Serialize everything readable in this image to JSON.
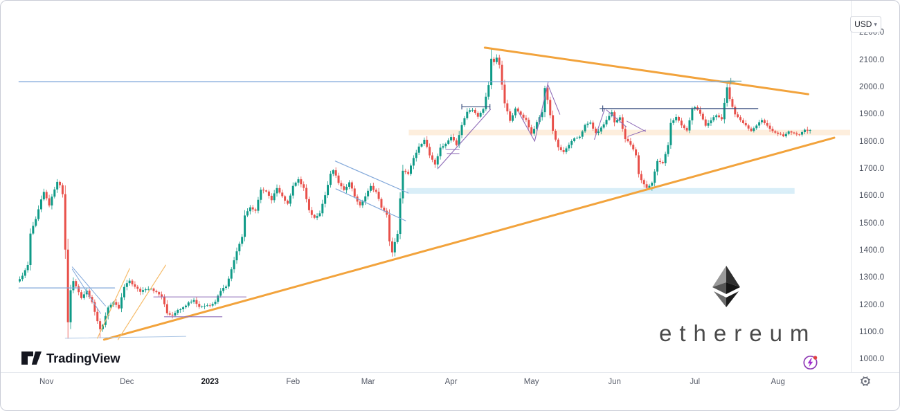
{
  "header": {
    "currency_label": "USD",
    "chevron_down": "▾"
  },
  "branding": {
    "tradingview": "TradingView",
    "watermark_text": "ethereum"
  },
  "axes": {
    "price_ticks": [
      {
        "p": 2200,
        "label": "2200.0"
      },
      {
        "p": 2100,
        "label": "2100.0"
      },
      {
        "p": 2000,
        "label": "2000.0"
      },
      {
        "p": 1900,
        "label": "1900.0"
      },
      {
        "p": 1800,
        "label": "1800.0"
      },
      {
        "p": 1700,
        "label": "1700.0"
      },
      {
        "p": 1600,
        "label": "1600.0"
      },
      {
        "p": 1500,
        "label": "1500.0"
      },
      {
        "p": 1400,
        "label": "1400.0"
      },
      {
        "p": 1300,
        "label": "1300.0"
      },
      {
        "p": 1200,
        "label": "1200.0"
      },
      {
        "p": 1100,
        "label": "1100.0"
      },
      {
        "p": 1000,
        "label": "1000.0"
      }
    ],
    "time_ticks": [
      {
        "d": 10,
        "label": "Nov",
        "bold": false
      },
      {
        "d": 40,
        "label": "Dec",
        "bold": false
      },
      {
        "d": 71,
        "label": "2023",
        "bold": true
      },
      {
        "d": 102,
        "label": "Feb",
        "bold": false
      },
      {
        "d": 130,
        "label": "Mar",
        "bold": false
      },
      {
        "d": 161,
        "label": "Apr",
        "bold": false
      },
      {
        "d": 191,
        "label": "May",
        "bold": false
      },
      {
        "d": 222,
        "label": "Jun",
        "bold": false
      },
      {
        "d": 252,
        "label": "Jul",
        "bold": false
      },
      {
        "d": 283,
        "label": "Aug",
        "bold": false
      }
    ]
  },
  "chart_data": {
    "type": "candlestick",
    "currency": "USD",
    "watermark": "ethereum",
    "x_range_days": 296,
    "ylim": [
      955,
      2295
    ],
    "price_anchors": [
      [
        0,
        1295
      ],
      [
        2,
        1330
      ],
      [
        3,
        1350
      ],
      [
        4,
        1465
      ],
      [
        6,
        1520
      ],
      [
        8,
        1590
      ],
      [
        9,
        1615
      ],
      [
        11,
        1570
      ],
      [
        13,
        1625
      ],
      [
        14,
        1655
      ],
      [
        15,
        1640
      ],
      [
        16,
        1610
      ],
      [
        17,
        1405
      ],
      [
        18,
        1140
      ],
      [
        19,
        1255
      ],
      [
        20,
        1290
      ],
      [
        21,
        1270
      ],
      [
        23,
        1230
      ],
      [
        25,
        1255
      ],
      [
        27,
        1215
      ],
      [
        29,
        1140
      ],
      [
        30,
        1112
      ],
      [
        31,
        1130
      ],
      [
        33,
        1195
      ],
      [
        35,
        1210
      ],
      [
        37,
        1190
      ],
      [
        39,
        1268
      ],
      [
        41,
        1292
      ],
      [
        43,
        1268
      ],
      [
        45,
        1252
      ],
      [
        47,
        1262
      ],
      [
        49,
        1264
      ],
      [
        51,
        1248
      ],
      [
        53,
        1234
      ],
      [
        55,
        1172
      ],
      [
        57,
        1165
      ],
      [
        59,
        1186
      ],
      [
        61,
        1192
      ],
      [
        63,
        1214
      ],
      [
        65,
        1220
      ],
      [
        67,
        1196
      ],
      [
        69,
        1200
      ],
      [
        71,
        1202
      ],
      [
        73,
        1216
      ],
      [
        75,
        1256
      ],
      [
        77,
        1272
      ],
      [
        79,
        1332
      ],
      [
        81,
        1402
      ],
      [
        83,
        1455
      ],
      [
        84,
        1532
      ],
      [
        86,
        1562
      ],
      [
        88,
        1546
      ],
      [
        90,
        1628
      ],
      [
        92,
        1618
      ],
      [
        94,
        1586
      ],
      [
        96,
        1634
      ],
      [
        98,
        1602
      ],
      [
        100,
        1572
      ],
      [
        102,
        1642
      ],
      [
        104,
        1662
      ],
      [
        106,
        1632
      ],
      [
        108,
        1548
      ],
      [
        110,
        1522
      ],
      [
        112,
        1542
      ],
      [
        114,
        1606
      ],
      [
        116,
        1682
      ],
      [
        117,
        1698
      ],
      [
        119,
        1652
      ],
      [
        121,
        1622
      ],
      [
        123,
        1656
      ],
      [
        125,
        1602
      ],
      [
        127,
        1566
      ],
      [
        129,
        1602
      ],
      [
        131,
        1638
      ],
      [
        133,
        1618
      ],
      [
        135,
        1562
      ],
      [
        137,
        1532
      ],
      [
        138,
        1438
      ],
      [
        139,
        1396
      ],
      [
        140,
        1432
      ],
      [
        141,
        1462
      ],
      [
        142,
        1592
      ],
      [
        143,
        1698
      ],
      [
        145,
        1682
      ],
      [
        147,
        1742
      ],
      [
        149,
        1782
      ],
      [
        151,
        1812
      ],
      [
        153,
        1752
      ],
      [
        155,
        1716
      ],
      [
        157,
        1782
      ],
      [
        159,
        1792
      ],
      [
        161,
        1822
      ],
      [
        163,
        1792
      ],
      [
        165,
        1862
      ],
      [
        167,
        1912
      ],
      [
        169,
        1922
      ],
      [
        171,
        1892
      ],
      [
        173,
        1922
      ],
      [
        175,
        2012
      ],
      [
        176,
        2108
      ],
      [
        177,
        2092
      ],
      [
        178,
        2112
      ],
      [
        179,
        2082
      ],
      [
        181,
        1942
      ],
      [
        183,
        1882
      ],
      [
        185,
        1922
      ],
      [
        187,
        1902
      ],
      [
        189,
        1882
      ],
      [
        191,
        1832
      ],
      [
        193,
        1872
      ],
      [
        195,
        1912
      ],
      [
        196,
        1998
      ],
      [
        197,
        1958
      ],
      [
        199,
        1842
      ],
      [
        201,
        1782
      ],
      [
        203,
        1762
      ],
      [
        205,
        1792
      ],
      [
        207,
        1812
      ],
      [
        209,
        1822
      ],
      [
        211,
        1862
      ],
      [
        213,
        1872
      ],
      [
        215,
        1832
      ],
      [
        217,
        1852
      ],
      [
        219,
        1882
      ],
      [
        221,
        1912
      ],
      [
        222,
        1872
      ],
      [
        224,
        1892
      ],
      [
        226,
        1812
      ],
      [
        228,
        1792
      ],
      [
        230,
        1752
      ],
      [
        231,
        1682
      ],
      [
        232,
        1662
      ],
      [
        234,
        1632
      ],
      [
        236,
        1652
      ],
      [
        238,
        1732
      ],
      [
        240,
        1722
      ],
      [
        242,
        1792
      ],
      [
        243,
        1872
      ],
      [
        245,
        1892
      ],
      [
        247,
        1862
      ],
      [
        249,
        1842
      ],
      [
        251,
        1922
      ],
      [
        252,
        1932
      ],
      [
        254,
        1902
      ],
      [
        256,
        1862
      ],
      [
        258,
        1882
      ],
      [
        260,
        1902
      ],
      [
        262,
        1882
      ],
      [
        264,
        2002
      ],
      [
        265,
        1962
      ],
      [
        267,
        1902
      ],
      [
        269,
        1882
      ],
      [
        271,
        1862
      ],
      [
        273,
        1842
      ],
      [
        275,
        1862
      ],
      [
        277,
        1882
      ],
      [
        279,
        1862
      ],
      [
        281,
        1842
      ],
      [
        283,
        1832
      ],
      [
        285,
        1822
      ],
      [
        287,
        1842
      ],
      [
        289,
        1832
      ],
      [
        291,
        1826
      ],
      [
        293,
        1846
      ],
      [
        295,
        1842
      ]
    ],
    "wick_overrides": [
      {
        "d": 18,
        "low": 1078
      },
      {
        "d": 30,
        "low": 1080
      },
      {
        "d": 139,
        "low": 1380
      },
      {
        "d": 176,
        "high": 2142
      },
      {
        "d": 196,
        "high": 2008
      },
      {
        "d": 236,
        "low": 1622
      },
      {
        "d": 264,
        "high": 2026
      }
    ],
    "colors": {
      "up": "#0e9a87",
      "down": "#e8504a",
      "orange_main": "#f2a33c",
      "orange_thin": "#f6bb68",
      "blue_line": "#7fa6d9",
      "blue_faint": "#a9c4e4",
      "navy": "#3c5180",
      "purple": "#8f6db8",
      "teal": "#6aa4a0",
      "band_blue": "#d9eef8",
      "band_peach": "#fdeedd"
    },
    "overlays": {
      "bands": [
        {
          "name": "support-zone-1620",
          "d1": 144.4,
          "d2": 289.2,
          "p1": 1611,
          "p2": 1632,
          "color": "band_blue"
        },
        {
          "name": "pivot-zone-1836",
          "d1": 145.2,
          "d2": 312,
          "p1": 1826,
          "p2": 1846,
          "color": "band_peach"
        }
      ],
      "lines": [
        {
          "name": "ascending-trendline-main",
          "d1": 31.5,
          "p1": 1075,
          "d2": 304,
          "p2": 1817,
          "color": "orange_main",
          "w": 3
        },
        {
          "name": "descending-trendline-main",
          "d1": 173.6,
          "p1": 2148,
          "d2": 294.3,
          "p2": 1977,
          "color": "orange_main",
          "w": 3
        },
        {
          "name": "resistance-2020",
          "d1": -0.3,
          "p1": 2023,
          "d2": 267,
          "p2": 2023,
          "color": "blue_line",
          "w": 1.2
        },
        {
          "name": "support-1265",
          "d1": -0.3,
          "p1": 1265,
          "d2": 35.4,
          "p2": 1265,
          "color": "blue_line",
          "w": 1.3
        },
        {
          "name": "low-baseline",
          "d1": 17,
          "p1": 1080,
          "d2": 62,
          "p2": 1087,
          "color": "blue_faint",
          "w": 1
        },
        {
          "name": "orange-channel-1",
          "d1": 29,
          "p1": 1080,
          "d2": 41,
          "p2": 1336,
          "color": "orange_thin",
          "w": 1.2
        },
        {
          "name": "orange-channel-2",
          "d1": 36.7,
          "p1": 1075,
          "d2": 54.5,
          "p2": 1349,
          "color": "orange_thin",
          "w": 1.2
        },
        {
          "name": "nov-wedge-upper",
          "d1": 19.6,
          "p1": 1342,
          "d2": 32,
          "p2": 1199,
          "color": "blue_line",
          "w": 1
        },
        {
          "name": "nov-wedge-lower",
          "d1": 19.6,
          "p1": 1334,
          "d2": 30.2,
          "p2": 1171,
          "color": "blue_line",
          "w": 1
        },
        {
          "name": "dec-range-top",
          "d1": 50,
          "p1": 1232,
          "d2": 84.5,
          "p2": 1232,
          "color": "purple",
          "w": 1.1
        },
        {
          "name": "dec-range-bottom",
          "d1": 54,
          "p1": 1159,
          "d2": 75.5,
          "p2": 1159,
          "color": "purple",
          "w": 1.1
        },
        {
          "name": "feb-channel-upper",
          "d1": 117.8,
          "p1": 1731,
          "d2": 145,
          "p2": 1614,
          "color": "blue_line",
          "w": 1.2
        },
        {
          "name": "feb-channel-lower",
          "d1": 118,
          "p1": 1629,
          "d2": 144,
          "p2": 1512,
          "color": "blue_line",
          "w": 1.2
        },
        {
          "name": "mar-apr-ascending",
          "d1": 156,
          "p1": 1703,
          "d2": 175.7,
          "p2": 1921,
          "color": "purple",
          "w": 1.1
        },
        {
          "name": "apr-shelf",
          "d1": 165,
          "p1": 1931,
          "d2": 175.5,
          "p2": 1931,
          "color": "navy",
          "w": 1.2,
          "ticks": true
        },
        {
          "name": "apr-mini-box-top",
          "d1": 159,
          "p1": 1774,
          "d2": 164,
          "p2": 1774,
          "color": "purple",
          "w": 1
        },
        {
          "name": "apr-mini-box-bottom",
          "d1": 159.5,
          "p1": 1759,
          "d2": 164,
          "p2": 1759,
          "color": "purple",
          "w": 1
        },
        {
          "name": "may-zigzag-1",
          "d1": 186.3,
          "p1": 1909,
          "d2": 192.2,
          "p2": 1804,
          "color": "purple",
          "w": 1.1
        },
        {
          "name": "may-zigzag-2",
          "d1": 192.2,
          "p1": 1804,
          "d2": 197.2,
          "p2": 2020,
          "color": "purple",
          "w": 1.1
        },
        {
          "name": "may-zigzag-3",
          "d1": 197.2,
          "p1": 2010,
          "d2": 201.6,
          "p2": 1903,
          "color": "purple",
          "w": 1.1
        },
        {
          "name": "jun-jul-resistance-1924",
          "d1": 217.6,
          "p1": 1924,
          "d2": 275.5,
          "p2": 1924,
          "color": "navy",
          "w": 1.3
        },
        {
          "name": "jun-ascending",
          "d1": 214.5,
          "p1": 1811,
          "d2": 218.3,
          "p2": 1921,
          "color": "purple",
          "w": 1.1
        },
        {
          "name": "jun-descending",
          "d1": 219,
          "p1": 1919,
          "d2": 226.4,
          "p2": 1857,
          "color": "purple",
          "w": 1.1
        },
        {
          "name": "jun-pennant-upper",
          "d1": 226.6,
          "p1": 1878,
          "d2": 233.6,
          "p2": 1840,
          "color": "purple",
          "w": 1
        },
        {
          "name": "jun-pennant-lower",
          "d1": 227,
          "p1": 1822,
          "d2": 233.6,
          "p2": 1845,
          "color": "purple",
          "w": 1
        },
        {
          "name": "jul-high-segment",
          "d1": 261.5,
          "p1": 2025,
          "d2": 269.3,
          "p2": 2025,
          "color": "teal",
          "w": 1
        }
      ],
      "plus_markers": [
        {
          "name": "jul-high-marker",
          "d": 265.4,
          "p": 2025,
          "color": "teal"
        },
        {
          "name": "jun-line-start-marker",
          "d": 217.6,
          "p": 1924,
          "color": "navy"
        }
      ]
    }
  }
}
